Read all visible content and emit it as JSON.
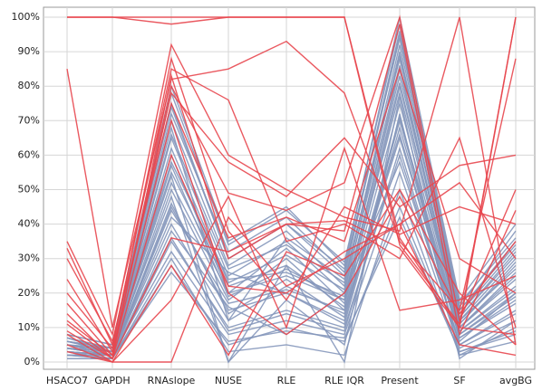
{
  "chart_data": {
    "type": "parallel",
    "categories": [
      "HSACO7",
      "GAPDH",
      "RNAslope",
      "NUSE",
      "RLE",
      "RLE IQR",
      "Present",
      "SF",
      "avgBG"
    ],
    "ylim": [
      0,
      100
    ],
    "yticks": [
      {
        "value": 0,
        "label": "0%"
      },
      {
        "value": 10,
        "label": "10%"
      },
      {
        "value": 20,
        "label": "20%"
      },
      {
        "value": 30,
        "label": "30%"
      },
      {
        "value": 40,
        "label": "40%"
      },
      {
        "value": 50,
        "label": "50%"
      },
      {
        "value": 60,
        "label": "60%"
      },
      {
        "value": 70,
        "label": "70%"
      },
      {
        "value": 80,
        "label": "80%"
      },
      {
        "value": 90,
        "label": "90%"
      },
      {
        "value": 100,
        "label": "100%"
      }
    ],
    "grid": true,
    "series": [
      {
        "color": "#8597bb",
        "values": [
          3,
          2,
          45,
          15,
          20,
          12,
          70,
          8,
          20
        ]
      },
      {
        "color": "#8597bb",
        "values": [
          5,
          3,
          60,
          20,
          25,
          18,
          85,
          10,
          25
        ]
      },
      {
        "color": "#8597bb",
        "values": [
          2,
          1,
          35,
          10,
          15,
          10,
          60,
          5,
          15
        ]
      },
      {
        "color": "#8597bb",
        "values": [
          7,
          4,
          75,
          30,
          40,
          25,
          95,
          15,
          35
        ]
      },
      {
        "color": "#8597bb",
        "values": [
          4,
          2,
          50,
          18,
          30,
          15,
          75,
          9,
          22
        ]
      },
      {
        "color": "#8597bb",
        "values": [
          6,
          3,
          65,
          25,
          35,
          20,
          90,
          12,
          30
        ]
      },
      {
        "color": "#8597bb",
        "values": [
          1,
          1,
          28,
          5,
          10,
          6,
          45,
          3,
          8
        ]
      },
      {
        "color": "#8597bb",
        "values": [
          8,
          5,
          80,
          35,
          45,
          28,
          100,
          18,
          40
        ]
      },
      {
        "color": "#8597bb",
        "values": [
          3,
          2,
          40,
          12,
          22,
          14,
          65,
          7,
          18
        ]
      },
      {
        "color": "#8597bb",
        "values": [
          5,
          4,
          55,
          22,
          28,
          16,
          80,
          11,
          28
        ]
      },
      {
        "color": "#8597bb",
        "values": [
          2,
          2,
          32,
          8,
          12,
          8,
          55,
          4,
          12
        ]
      },
      {
        "color": "#8597bb",
        "values": [
          6,
          4,
          70,
          28,
          38,
          22,
          92,
          14,
          33
        ]
      },
      {
        "color": "#8597bb",
        "values": [
          4,
          3,
          48,
          0,
          18,
          5,
          72,
          2,
          10
        ]
      },
      {
        "color": "#8597bb",
        "values": [
          3,
          1,
          38,
          16,
          8,
          20,
          58,
          6,
          20
        ]
      },
      {
        "color": "#8597bb",
        "values": [
          7,
          3,
          72,
          32,
          42,
          26,
          96,
          16,
          38
        ]
      },
      {
        "color": "#8597bb",
        "values": [
          4,
          2,
          52,
          20,
          33,
          17,
          78,
          10,
          24
        ]
      },
      {
        "color": "#8597bb",
        "values": [
          2,
          1,
          30,
          3,
          5,
          2,
          50,
          2,
          6
        ]
      },
      {
        "color": "#8597bb",
        "values": [
          5,
          3,
          58,
          24,
          26,
          19,
          83,
          12,
          27
        ]
      },
      {
        "color": "#8597bb",
        "values": [
          6,
          4,
          68,
          12,
          36,
          24,
          88,
          13,
          31
        ]
      },
      {
        "color": "#8597bb",
        "values": [
          3,
          2,
          42,
          26,
          20,
          11,
          68,
          8,
          19
        ]
      },
      {
        "color": "#8597bb",
        "values": [
          8,
          5,
          78,
          34,
          44,
          29,
          98,
          17,
          36
        ]
      },
      {
        "color": "#8597bb",
        "values": [
          1,
          1,
          26,
          6,
          9,
          7,
          42,
          3,
          9
        ]
      },
      {
        "color": "#8597bb",
        "values": [
          4,
          2,
          46,
          14,
          24,
          13,
          71,
          9,
          21
        ]
      },
      {
        "color": "#8597bb",
        "values": [
          5,
          3,
          62,
          23,
          31,
          21,
          86,
          11,
          29
        ]
      },
      {
        "color": "#8597bb",
        "values": [
          2,
          2,
          36,
          9,
          14,
          9,
          62,
          5,
          14
        ]
      },
      {
        "color": "#8597bb",
        "values": [
          7,
          4,
          74,
          30,
          40,
          27,
          94,
          15,
          34
        ]
      },
      {
        "color": "#8597bb",
        "values": [
          3,
          2,
          44,
          17,
          21,
          15,
          66,
          7,
          17
        ]
      },
      {
        "color": "#8597bb",
        "values": [
          6,
          3,
          66,
          27,
          34,
          23,
          89,
          13,
          32
        ]
      },
      {
        "color": "#8597bb",
        "values": [
          4,
          3,
          54,
          0,
          28,
          0,
          77,
          1,
          12
        ]
      },
      {
        "color": "#8597bb",
        "values": [
          5,
          2,
          57,
          19,
          27,
          18,
          81,
          10,
          26
        ]
      },
      {
        "color": "#e8474f",
        "values": [
          100,
          100,
          98,
          100,
          100,
          100,
          36,
          10,
          100
        ]
      },
      {
        "color": "#e8474f",
        "values": [
          85,
          10,
          82,
          85,
          93,
          78,
          35,
          15,
          88
        ]
      },
      {
        "color": "#e8474f",
        "values": [
          35,
          8,
          92,
          60,
          50,
          42,
          38,
          100,
          5
        ]
      },
      {
        "color": "#e8474f",
        "values": [
          33,
          5,
          85,
          76,
          35,
          40,
          30,
          65,
          10
        ]
      },
      {
        "color": "#e8474f",
        "values": [
          24,
          3,
          78,
          58,
          48,
          65,
          45,
          57,
          60
        ]
      },
      {
        "color": "#e8474f",
        "values": [
          17,
          2,
          80,
          49,
          44,
          52,
          100,
          12,
          50
        ]
      },
      {
        "color": "#e8474f",
        "values": [
          14,
          1,
          83,
          30,
          40,
          38,
          98,
          8,
          44
        ]
      },
      {
        "color": "#e8474f",
        "values": [
          11,
          1,
          60,
          22,
          20,
          32,
          40,
          52,
          30
        ]
      },
      {
        "color": "#e8474f",
        "values": [
          8,
          0,
          28,
          2,
          32,
          25,
          50,
          20,
          5
        ]
      },
      {
        "color": "#e8474f",
        "values": [
          5,
          0,
          18,
          48,
          10,
          62,
          15,
          18,
          25
        ]
      },
      {
        "color": "#e8474f",
        "values": [
          3,
          0,
          0,
          42,
          22,
          30,
          40,
          5,
          2
        ]
      },
      {
        "color": "#e8474f",
        "values": [
          20,
          4,
          88,
          38,
          18,
          45,
          37,
          45,
          40
        ]
      },
      {
        "color": "#e8474f",
        "values": [
          100,
          100,
          100,
          100,
          100,
          100,
          34,
          11,
          100
        ]
      },
      {
        "color": "#e8474f",
        "values": [
          30,
          6,
          75,
          36,
          42,
          35,
          85,
          30,
          20
        ]
      },
      {
        "color": "#e8474f",
        "values": [
          12,
          2,
          70,
          20,
          8,
          20,
          48,
          14,
          35
        ]
      },
      {
        "color": "#e8474f",
        "values": [
          9,
          1,
          36,
          32,
          40,
          41,
          33,
          10,
          8
        ]
      }
    ]
  }
}
